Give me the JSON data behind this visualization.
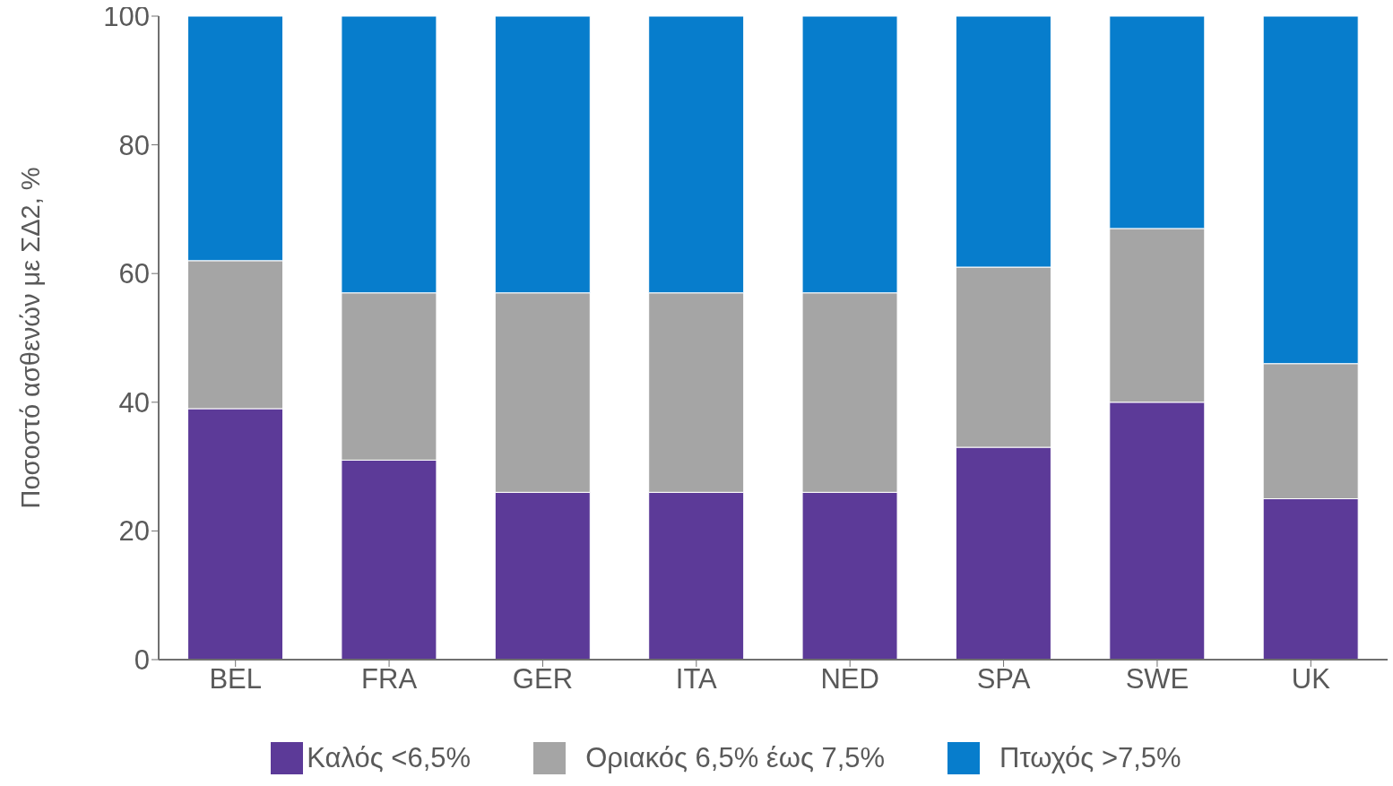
{
  "chart_data": {
    "type": "bar",
    "stacked": true,
    "ylabel": "Ποσοστό ασθενών με ΣΔ2, %",
    "categories": [
      "BEL",
      "FRA",
      "GER",
      "ITA",
      "NED",
      "SPA",
      "SWE",
      "UK"
    ],
    "series": [
      {
        "name": "Καλός <6,5%",
        "color": "#5c3a98",
        "values": [
          39,
          31,
          26,
          26,
          26,
          33,
          40,
          25
        ]
      },
      {
        "name": "Οριακός 6,5% έως 7,5%",
        "color": "#a5a5a5",
        "values": [
          23,
          26,
          31,
          31,
          31,
          28,
          27,
          21
        ]
      },
      {
        "name": "Πτωχός >7,5%",
        "color": "#077dcc",
        "values": [
          38,
          43,
          43,
          43,
          43,
          39,
          33,
          54
        ]
      }
    ],
    "ylim": [
      0,
      100
    ],
    "yticks": [
      0,
      20,
      40,
      60,
      80,
      100
    ],
    "legend": "bottom"
  }
}
